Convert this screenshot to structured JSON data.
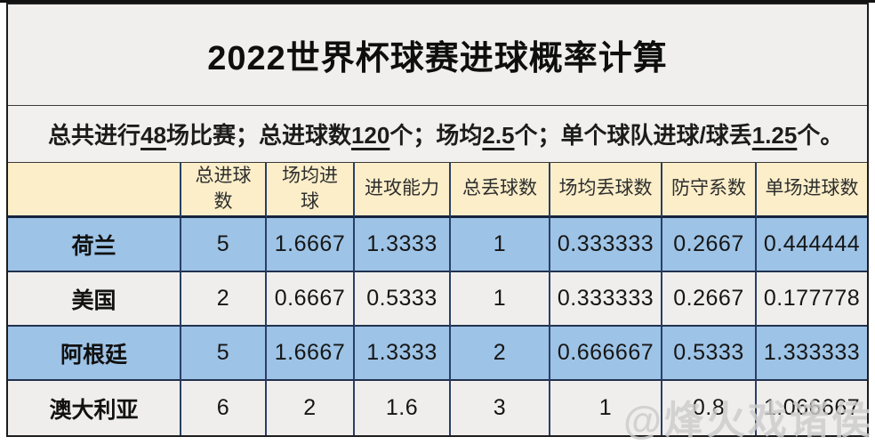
{
  "header": {
    "title": "2022世界杯球赛进球概率计算"
  },
  "summary": {
    "full_text": "总共进行48场比赛；总进球数120个；场均2.5个；单个球队进球/球丢1.25个。",
    "segments": [
      {
        "text": "总共进行",
        "underline": false
      },
      {
        "text": "48",
        "underline": true
      },
      {
        "text": "场比赛；总进球数",
        "underline": false
      },
      {
        "text": "120",
        "underline": true
      },
      {
        "text": "个；场均",
        "underline": false
      },
      {
        "text": "2.5",
        "underline": true
      },
      {
        "text": "个；单个球队进球/球丢",
        "underline": false
      },
      {
        "text": "1.25",
        "underline": true
      },
      {
        "text": "个。",
        "underline": false
      }
    ]
  },
  "chart_data": {
    "type": "table",
    "title": "2022世界杯球赛进球概率计算",
    "subtitle": "总共进行48场比赛；总进球数120个；场均2.5个；单个球队进球/球丢1.25个。",
    "columns": [
      "",
      "总进球数",
      "场均进球",
      "进攻能力",
      "总丢球数",
      "场均丢球数",
      "防守系数",
      "单场进球数"
    ],
    "column_keys": [
      "team",
      "total-goals",
      "avg-goals",
      "attack-ability",
      "total-conceded",
      "avg-conceded",
      "defense-coefficient",
      "single-match-goals"
    ],
    "rows": [
      {
        "team": "荷兰",
        "values": [
          "5",
          "1.6667",
          "1.3333",
          "1",
          "0.333333",
          "0.2667",
          "0.444444"
        ]
      },
      {
        "team": "美国",
        "values": [
          "2",
          "0.6667",
          "0.5333",
          "1",
          "0.333333",
          "0.2667",
          "0.177778"
        ]
      },
      {
        "team": "阿根廷",
        "values": [
          "5",
          "1.6667",
          "1.3333",
          "2",
          "0.666667",
          "0.5333",
          "1.333333"
        ]
      },
      {
        "team": "澳大利亚",
        "values": [
          "6",
          "2",
          "1.6",
          "3",
          "1",
          "0.8",
          "1.066667"
        ]
      }
    ],
    "row_styles": [
      "blue",
      "light",
      "blue",
      "light"
    ],
    "grid": true,
    "legend_position": "none"
  },
  "watermark": {
    "text": "@烽火戏诸侯"
  },
  "colors": {
    "title_bg": "#F0EFED",
    "summary_bg": "#F1F0EE",
    "header_row_bg": "#FBEEC9",
    "row_blue": "#9DC3E6",
    "row_light": "#EFEEEC",
    "cell_border": "#2A3F66",
    "frame_border": "#1D1D1D",
    "text": "#1A1A1A",
    "watermark": "#CDCDCD"
  }
}
